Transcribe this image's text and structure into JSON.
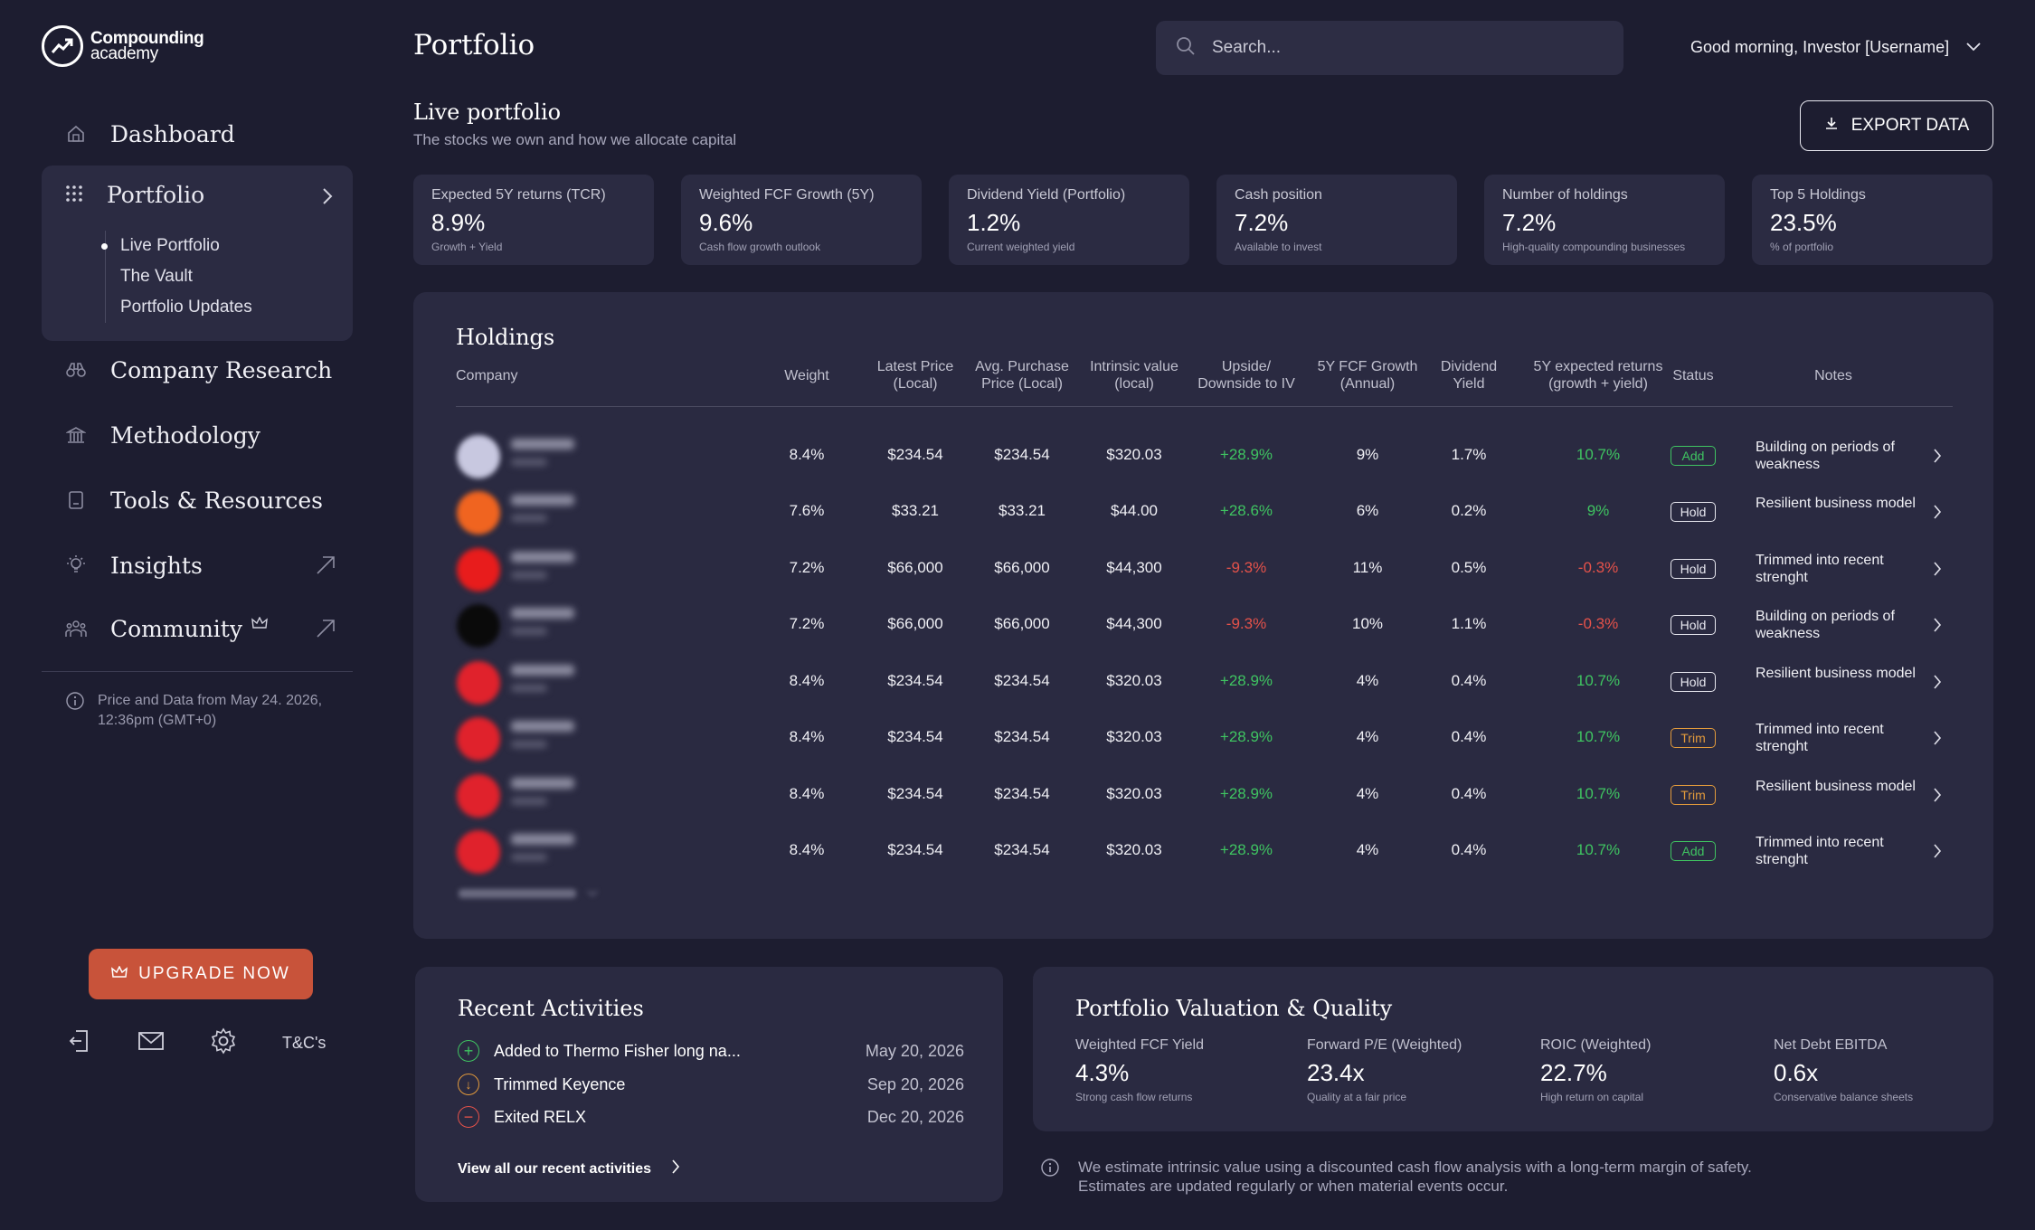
{
  "brand": {
    "line1": "Compounding",
    "line2": "academy"
  },
  "nav": {
    "dashboard": "Dashboard",
    "portfolio": "Portfolio",
    "portfolio_sub": [
      "Live Portfolio",
      "The Vault",
      "Portfolio Updates"
    ],
    "company_research": "Company Research",
    "methodology": "Methodology",
    "tools": "Tools & Resources",
    "insights": "Insights",
    "community": "Community"
  },
  "price_note": "Price and Data from May 24. 2026, 12:36pm (GMT+0)",
  "upgrade_label": "UPGRADE NOW",
  "terms_label": "T&C's",
  "header": {
    "title": "Portfolio",
    "search_placeholder": "Search...",
    "greeting": "Good morning, Investor [Username]"
  },
  "live": {
    "title": "Live portfolio",
    "subtitle": "The stocks we own and how we allocate capital",
    "export_label": "EXPORT DATA"
  },
  "stats": [
    {
      "label": "Expected 5Y returns (TCR)",
      "value": "8.9%",
      "caption": "Growth + Yield"
    },
    {
      "label": "Weighted FCF Growth (5Y)",
      "value": "9.6%",
      "caption": "Cash flow growth outlook"
    },
    {
      "label": "Dividend Yield (Portfolio)",
      "value": "1.2%",
      "caption": "Current weighted yield"
    },
    {
      "label": "Cash position",
      "value": "7.2%",
      "caption": "Available to invest"
    },
    {
      "label": "Number of holdings",
      "value": "7.2%",
      "caption": "High-quality compounding businesses"
    },
    {
      "label": "Top 5 Holdings",
      "value": "23.5%",
      "caption": "% of portfolio"
    }
  ],
  "holdings": {
    "title": "Holdings",
    "columns": {
      "company": "Company",
      "weight": "Weight",
      "latest_price": "Latest Price\n(Local)",
      "avg_price": "Avg. Purchase\nPrice (Local)",
      "intrinsic": "Intrinsic value\n(local)",
      "upside": "Upside/\nDownside to IV",
      "fcf": "5Y FCF Growth\n(Annual)",
      "dividend": "Dividend\nYield",
      "expected": "5Y expected returns\n(growth + yield)",
      "status": "Status",
      "notes": "Notes"
    },
    "rows": [
      {
        "avatar_color": "#c8c8e0",
        "weight": "8.4%",
        "latest": "$234.54",
        "avg": "$234.54",
        "iv": "$320.03",
        "upside": "+28.9%",
        "upside_dir": "pos",
        "fcf": "9%",
        "div": "1.7%",
        "exp": "10.7%",
        "exp_dir": "pos",
        "status": "Add",
        "status_kind": "add",
        "note": "Building on periods of weakness"
      },
      {
        "avatar_color": "#f06420",
        "weight": "7.6%",
        "latest": "$33.21",
        "avg": "$33.21",
        "iv": "$44.00",
        "upside": "+28.6%",
        "upside_dir": "pos",
        "fcf": "6%",
        "div": "0.2%",
        "exp": "9%",
        "exp_dir": "pos",
        "status": "Hold",
        "status_kind": "hold",
        "note": "Resilient business model"
      },
      {
        "avatar_color": "#e81c1c",
        "weight": "7.2%",
        "latest": "$66,000",
        "avg": "$66,000",
        "iv": "$44,300",
        "upside": "-9.3%",
        "upside_dir": "neg",
        "fcf": "11%",
        "div": "0.5%",
        "exp": "-0.3%",
        "exp_dir": "neg",
        "status": "Hold",
        "status_kind": "hold",
        "note": "Trimmed into recent strenght"
      },
      {
        "avatar_color": "#0a0a0a",
        "weight": "7.2%",
        "latest": "$66,000",
        "avg": "$66,000",
        "iv": "$44,300",
        "upside": "-9.3%",
        "upside_dir": "neg",
        "fcf": "10%",
        "div": "1.1%",
        "exp": "-0.3%",
        "exp_dir": "neg",
        "status": "Hold",
        "status_kind": "hold",
        "note": "Building on periods of weakness"
      },
      {
        "avatar_color": "#e0222c",
        "weight": "8.4%",
        "latest": "$234.54",
        "avg": "$234.54",
        "iv": "$320.03",
        "upside": "+28.9%",
        "upside_dir": "pos",
        "fcf": "4%",
        "div": "0.4%",
        "exp": "10.7%",
        "exp_dir": "pos",
        "status": "Hold",
        "status_kind": "hold",
        "note": "Resilient business model"
      },
      {
        "avatar_color": "#e0222c",
        "weight": "8.4%",
        "latest": "$234.54",
        "avg": "$234.54",
        "iv": "$320.03",
        "upside": "+28.9%",
        "upside_dir": "pos",
        "fcf": "4%",
        "div": "0.4%",
        "exp": "10.7%",
        "exp_dir": "pos",
        "status": "Trim",
        "status_kind": "trim",
        "note": "Trimmed into recent strenght"
      },
      {
        "avatar_color": "#e0222c",
        "weight": "8.4%",
        "latest": "$234.54",
        "avg": "$234.54",
        "iv": "$320.03",
        "upside": "+28.9%",
        "upside_dir": "pos",
        "fcf": "4%",
        "div": "0.4%",
        "exp": "10.7%",
        "exp_dir": "pos",
        "status": "Trim",
        "status_kind": "trim",
        "note": "Resilient business model"
      },
      {
        "avatar_color": "#e0222c",
        "weight": "8.4%",
        "latest": "$234.54",
        "avg": "$234.54",
        "iv": "$320.03",
        "upside": "+28.9%",
        "upside_dir": "pos",
        "fcf": "4%",
        "div": "0.4%",
        "exp": "10.7%",
        "exp_dir": "pos",
        "status": "Add",
        "status_kind": "add",
        "note": "Trimmed into recent strenght"
      }
    ]
  },
  "recent": {
    "title": "Recent Activities",
    "items": [
      {
        "kind": "add",
        "text": "Added to Thermo Fisher long na...",
        "date": "May 20, 2026"
      },
      {
        "kind": "trim",
        "text": "Trimmed Keyence",
        "date": "Sep 20, 2026"
      },
      {
        "kind": "exit",
        "text": "Exited RELX",
        "date": "Dec 20, 2026"
      }
    ],
    "view_all": "View all our recent activities"
  },
  "valuation": {
    "title": "Portfolio Valuation & Quality",
    "metrics": [
      {
        "label": "Weighted FCF Yield",
        "value": "4.3%",
        "caption": "Strong cash flow returns"
      },
      {
        "label": "Forward P/E (Weighted)",
        "value": "23.4x",
        "caption": "Quality at a fair price"
      },
      {
        "label": "ROIC (Weighted)",
        "value": "22.7%",
        "caption": "High return on capital"
      },
      {
        "label": "Net Debt EBITDA",
        "value": "0.6x",
        "caption": "Conservative balance sheets"
      }
    ]
  },
  "disclaimer": "We estimate intrinsic value using a discounted cash flow analysis with a long-term margin of safety. Estimates are updated regularly or when material events occur.",
  "colors": {
    "background": "#1d1d30",
    "card": "#2a2a41",
    "positive": "#3fc461",
    "negative": "#e5524a",
    "trim": "#e29a3c",
    "upgrade": "#c8533a"
  }
}
